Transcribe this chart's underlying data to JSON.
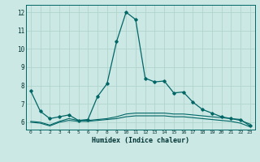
{
  "xlabel": "Humidex (Indice chaleur)",
  "bg_color": "#cce8e4",
  "grid_color": "#b0d4cc",
  "line_color": "#006666",
  "xlim": [
    -0.5,
    23.5
  ],
  "ylim": [
    5.6,
    12.4
  ],
  "yticks": [
    6,
    7,
    8,
    9,
    10,
    11,
    12
  ],
  "xticks": [
    0,
    1,
    2,
    3,
    4,
    5,
    6,
    7,
    8,
    9,
    10,
    11,
    12,
    13,
    14,
    15,
    16,
    17,
    18,
    19,
    20,
    21,
    22,
    23
  ],
  "main_x": [
    0,
    1,
    2,
    3,
    4,
    5,
    6,
    7,
    8,
    9,
    10,
    11,
    12,
    13,
    14,
    15,
    16,
    17,
    18,
    19,
    20,
    21,
    22,
    23
  ],
  "main_y": [
    7.7,
    6.6,
    6.2,
    6.3,
    6.4,
    6.1,
    6.15,
    7.4,
    8.1,
    10.4,
    12.0,
    11.6,
    8.4,
    8.2,
    8.25,
    7.6,
    7.65,
    7.1,
    6.7,
    6.5,
    6.3,
    6.2,
    6.15,
    5.8
  ],
  "flat1_x": [
    0,
    1,
    2,
    3,
    4,
    5,
    6,
    7,
    8,
    9,
    10,
    11,
    12,
    13,
    14,
    15,
    16,
    17,
    18,
    19,
    20,
    21,
    22,
    23
  ],
  "flat1_y": [
    6.05,
    6.0,
    5.85,
    6.05,
    6.2,
    6.1,
    6.1,
    6.15,
    6.2,
    6.3,
    6.45,
    6.5,
    6.5,
    6.5,
    6.5,
    6.45,
    6.45,
    6.4,
    6.35,
    6.3,
    6.25,
    6.2,
    6.1,
    5.9
  ],
  "flat2_x": [
    0,
    1,
    2,
    3,
    4,
    5,
    6,
    7,
    8,
    9,
    10,
    11,
    12,
    13,
    14,
    15,
    16,
    17,
    18,
    19,
    20,
    21,
    22,
    23
  ],
  "flat2_y": [
    6.0,
    5.95,
    5.8,
    6.0,
    6.1,
    6.05,
    6.05,
    6.1,
    6.15,
    6.2,
    6.3,
    6.35,
    6.35,
    6.35,
    6.35,
    6.3,
    6.3,
    6.25,
    6.2,
    6.15,
    6.1,
    6.05,
    5.95,
    5.75
  ]
}
